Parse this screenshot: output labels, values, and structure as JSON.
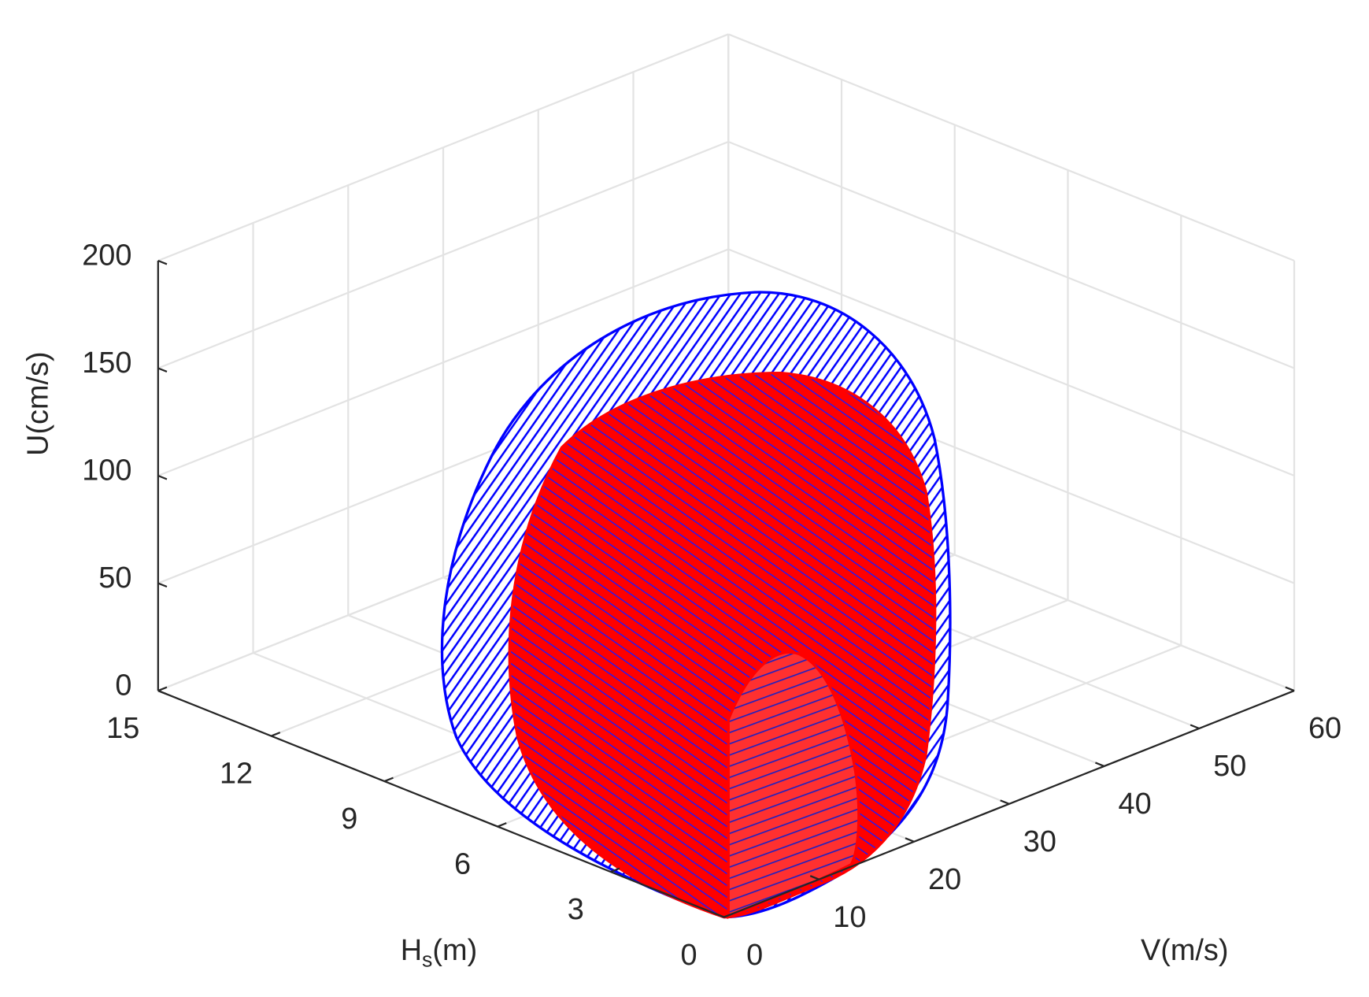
{
  "chart_data": {
    "type": "surface3d",
    "xlabel": "V(m/s)",
    "ylabel": [
      "H",
      "s",
      "(m)"
    ],
    "zlabel": "U(cm/s)",
    "xlim": [
      0,
      60
    ],
    "xticks": [
      0,
      10,
      20,
      30,
      40,
      50,
      60
    ],
    "ylim": [
      0,
      15
    ],
    "yticks": [
      0,
      3,
      6,
      9,
      12,
      15
    ],
    "zlim": [
      0,
      200
    ],
    "zticks": [
      0,
      50,
      100,
      150,
      200
    ],
    "grid": true,
    "series": [
      {
        "color": "#0000ff"
      },
      {
        "color": "#ff0000"
      }
    ]
  }
}
